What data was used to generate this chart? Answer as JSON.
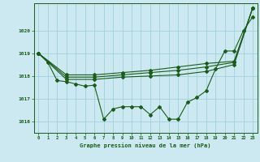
{
  "bg_color": "#cce8f0",
  "grid_color": "#99ccd8",
  "line_color": "#1a5c1a",
  "marker_color": "#1a5c1a",
  "title": "Graphe pression niveau de la mer (hPa)",
  "title_color": "#1a5c1a",
  "xlim": [
    -0.5,
    23.5
  ],
  "ylim": [
    1015.5,
    1021.2
  ],
  "yticks": [
    1016,
    1017,
    1018,
    1019,
    1020
  ],
  "xticks": [
    0,
    1,
    2,
    3,
    4,
    5,
    6,
    7,
    8,
    9,
    10,
    11,
    12,
    13,
    14,
    15,
    16,
    17,
    18,
    19,
    20,
    21,
    22,
    23
  ],
  "series1": {
    "x": [
      0,
      1,
      2,
      3,
      4,
      5,
      6,
      7,
      8,
      9,
      10,
      11,
      12,
      13,
      14,
      15,
      16,
      17,
      18,
      19,
      20,
      21,
      22,
      23
    ],
    "y": [
      1019.0,
      1018.6,
      1017.8,
      1017.75,
      1017.65,
      1017.55,
      1017.6,
      1016.1,
      1016.55,
      1016.65,
      1016.65,
      1016.65,
      1016.3,
      1016.65,
      1016.1,
      1016.1,
      1016.85,
      1017.05,
      1017.35,
      1018.3,
      1019.1,
      1019.1,
      1020.0,
      1020.6
    ]
  },
  "series2": {
    "x": [
      0,
      3,
      6,
      9,
      12,
      15,
      18,
      21,
      23
    ],
    "y": [
      1019.0,
      1017.85,
      1017.85,
      1017.95,
      1018.0,
      1018.05,
      1018.2,
      1018.5,
      1021.0
    ]
  },
  "series3": {
    "x": [
      0,
      3,
      6,
      9,
      12,
      15,
      18,
      21,
      23
    ],
    "y": [
      1019.0,
      1017.95,
      1017.95,
      1018.05,
      1018.15,
      1018.25,
      1018.4,
      1018.6,
      1021.0
    ]
  },
  "series4": {
    "x": [
      0,
      3,
      6,
      9,
      12,
      15,
      18,
      21,
      23
    ],
    "y": [
      1019.0,
      1018.05,
      1018.05,
      1018.15,
      1018.25,
      1018.4,
      1018.55,
      1018.65,
      1021.0
    ]
  }
}
